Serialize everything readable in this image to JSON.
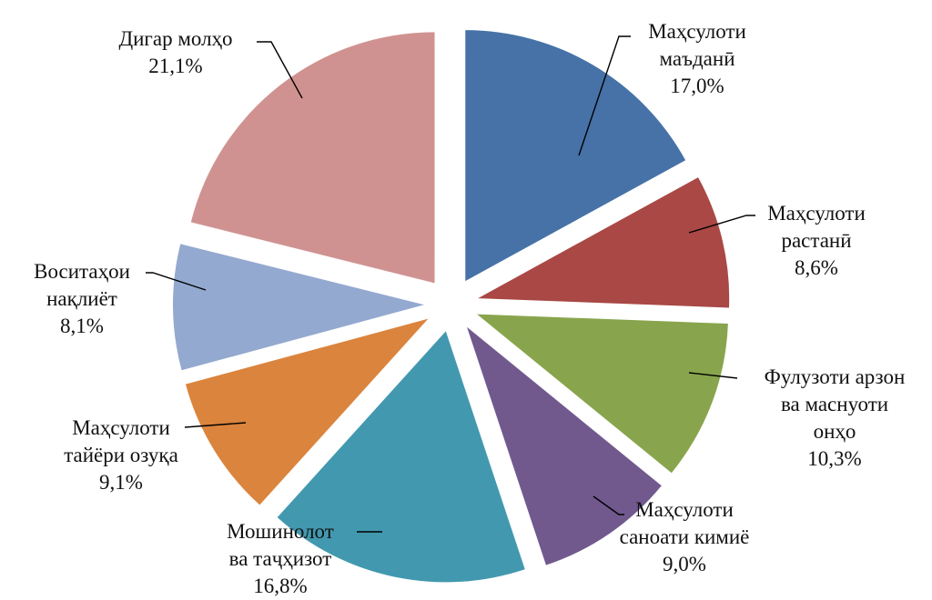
{
  "chart_data": {
    "type": "pie",
    "exploded": true,
    "title": "",
    "legend": "none",
    "start_angle_deg": 0,
    "direction": "clockwise",
    "slices": [
      {
        "label_lines": [
          "Маҳсулоти",
          "маъданӣ"
        ],
        "value": 17.0,
        "value_text": "17,0%",
        "color": "#4672A7"
      },
      {
        "label_lines": [
          "Маҳсулоти",
          "растанӣ"
        ],
        "value": 8.6,
        "value_text": "8,6%",
        "color": "#A94845"
      },
      {
        "label_lines": [
          "Фулузоти арзон",
          "ва маснуоти",
          "онҳо"
        ],
        "value": 10.3,
        "value_text": "10,3%",
        "color": "#88A54D"
      },
      {
        "label_lines": [
          "Маҳсулоти",
          "саноати кимиё"
        ],
        "value": 9.0,
        "value_text": "9,0%",
        "color": "#71598E"
      },
      {
        "label_lines": [
          "Мошинолот",
          "ва таҷҳизот"
        ],
        "value": 16.8,
        "value_text": "16,8%",
        "color": "#4299AF"
      },
      {
        "label_lines": [
          "Маҳсулоти",
          "тайёри озуқа"
        ],
        "value": 9.1,
        "value_text": "9,1%",
        "color": "#DB843D"
      },
      {
        "label_lines": [
          "Воситаҳои",
          "нақлиёт"
        ],
        "value": 8.1,
        "value_text": "8,1%",
        "color": "#93A9CF"
      },
      {
        "label_lines": [
          "Дигар молҳо"
        ],
        "value": 21.1,
        "value_text": "21,1%",
        "color": "#D09290"
      }
    ]
  }
}
